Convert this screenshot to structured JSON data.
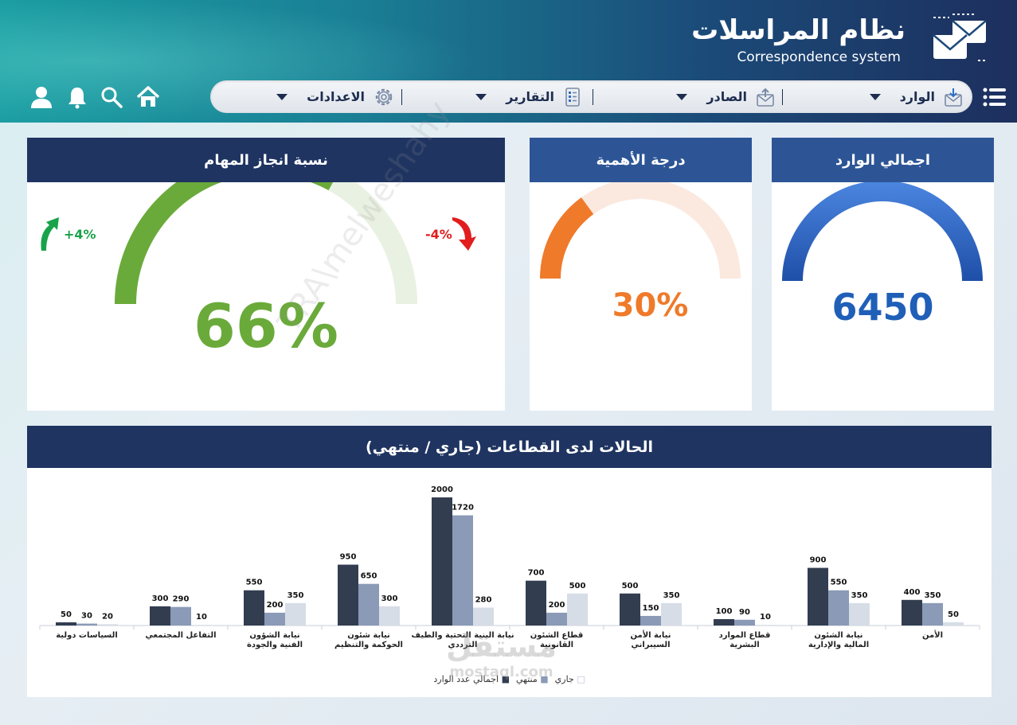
{
  "header": {
    "title_ar": "نظام المراسلات",
    "title_en": "Correspondence system"
  },
  "nav": {
    "items": [
      {
        "label": "الوارد",
        "icon": "inbox-icon"
      },
      {
        "label": "الصادر",
        "icon": "outbox-icon"
      },
      {
        "label": "التقارير",
        "icon": "report-icon"
      },
      {
        "label": "الاعدادات",
        "icon": "gear-icon"
      }
    ]
  },
  "top_icons": [
    "home-icon",
    "search-icon",
    "bell-icon",
    "user-icon"
  ],
  "cards": {
    "total_incoming": {
      "title": "اجمالي الوارد",
      "value": "6450",
      "fraction": 1.0,
      "color": "#2e66c6"
    },
    "importance": {
      "title": "درجة الأهمية",
      "value": "30%",
      "fraction": 0.3,
      "color": "#ef7a2a",
      "track": "#fbe9df"
    },
    "completion": {
      "title": "نسبة انجاز المهام",
      "value": "66%",
      "fraction": 0.66,
      "color": "#6aaa3a",
      "track": "#e9f1e2",
      "trend_up": "+4%",
      "trend_down": "-4%"
    }
  },
  "colors": {
    "header_dark": "#1f3461",
    "header_blue": "#2d5596",
    "up": "#18a34a",
    "down": "#e11d1d"
  },
  "chart_data": {
    "type": "bar",
    "title": "الحالات لدى القطاعات (جاري / منتهي)",
    "categories": [
      "الأمن",
      "نيابة الشئون المالية والإدارية",
      "قطاع الموارد البشرية",
      "نيابة الأمن السيبراني",
      "قطاع الشئون القانونية",
      "نيابة البنية التحتية والطيف الترددي",
      "نيابة شئون الحوكمة والتنظيم",
      "نيابة الشؤون الفنية والجودة",
      "التفاعل المجتمعي",
      "السياسات دولية"
    ],
    "series": [
      {
        "name": "اجمالي عدد الوارد",
        "color": "#333d50",
        "values": [
          400,
          900,
          100,
          500,
          700,
          2000,
          950,
          550,
          300,
          50
        ]
      },
      {
        "name": "منتهي",
        "color": "#8a9ab7",
        "values": [
          350,
          550,
          90,
          150,
          200,
          1720,
          650,
          200,
          290,
          30
        ]
      },
      {
        "name": "جاري",
        "color": "#d6dde7",
        "values": [
          50,
          350,
          10,
          350,
          500,
          280,
          300,
          350,
          10,
          20
        ]
      }
    ],
    "legend": [
      {
        "name": "جاري",
        "marker": "□"
      },
      {
        "name": "منتهي",
        "marker": "■"
      },
      {
        "name": "اجمالي عدد الوارد",
        "marker": "■"
      }
    ],
    "ylim": [
      0,
      2000
    ]
  },
  "watermarks": {
    "diag": "TRA\\melweshahy",
    "logo_ar": "مستقل",
    "logo_en": "mostaql.com"
  }
}
